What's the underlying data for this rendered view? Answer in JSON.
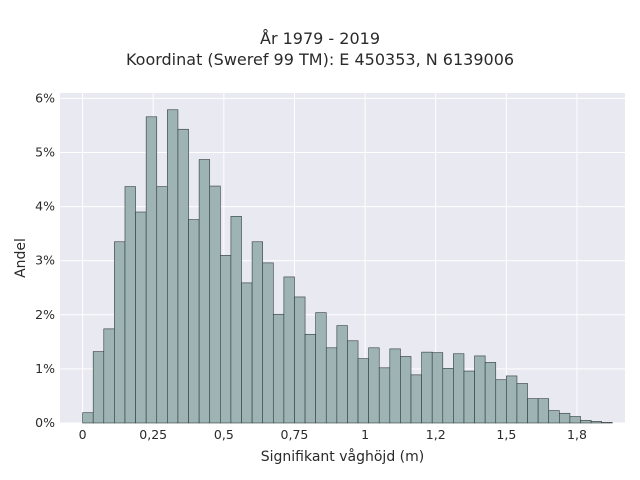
{
  "chart_data": {
    "type": "bar",
    "title_line1": "År 1979 - 2019",
    "title_line2": "Koordinat (Sweref 99 TM): E 450353, N 6139006",
    "xlabel": "Signifikant våghöjd (m)",
    "ylabel": "Andel",
    "xlim": [
      -0.08,
      1.92
    ],
    "ylim": [
      0,
      6.1
    ],
    "xticks": [
      {
        "value": 0,
        "label": "0"
      },
      {
        "value": 0.25,
        "label": "0,25"
      },
      {
        "value": 0.5,
        "label": "0,5"
      },
      {
        "value": 0.75,
        "label": "0,75"
      },
      {
        "value": 1,
        "label": "1"
      },
      {
        "value": 1.25,
        "label": "1,2"
      },
      {
        "value": 1.5,
        "label": "1,5"
      },
      {
        "value": 1.75,
        "label": "1,8"
      }
    ],
    "yticks": [
      {
        "value": 0,
        "label": "0%"
      },
      {
        "value": 1,
        "label": "1%"
      },
      {
        "value": 2,
        "label": "2%"
      },
      {
        "value": 3,
        "label": "3%"
      },
      {
        "value": 4,
        "label": "4%"
      },
      {
        "value": 5,
        "label": "5%"
      },
      {
        "value": 6,
        "label": "6%"
      }
    ],
    "bin_start": 0,
    "bin_width": 0.0375,
    "values": [
      0.19,
      1.32,
      1.74,
      3.35,
      4.37,
      3.9,
      5.66,
      4.37,
      5.79,
      5.43,
      3.76,
      4.87,
      4.38,
      3.1,
      3.82,
      2.59,
      3.35,
      2.96,
      2.01,
      2.7,
      2.33,
      1.64,
      2.04,
      1.39,
      1.8,
      1.52,
      1.19,
      1.39,
      1.02,
      1.37,
      1.23,
      0.89,
      1.31,
      1.3,
      1.01,
      1.28,
      0.96,
      1.24,
      1.12,
      0.8,
      0.87,
      0.73,
      0.45,
      0.45,
      0.23,
      0.18,
      0.12,
      0.05,
      0.03,
      0.01
    ],
    "colors": {
      "background": "#e9e9f1",
      "grid": "#ffffff",
      "bar_fill": "#9eb3b3",
      "bar_stroke": "#2f3b3b"
    }
  }
}
